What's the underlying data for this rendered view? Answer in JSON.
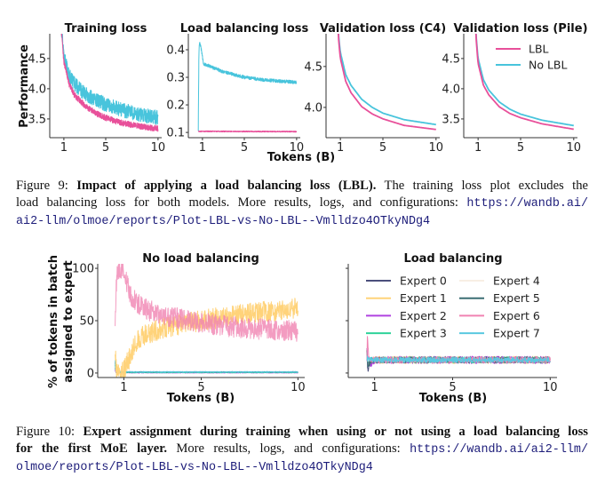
{
  "figure9": {
    "shared_xlabel": "Tokens (B)",
    "caption": {
      "label": "Figure 9: ",
      "bold": "Impact of applying a load balancing loss (LBL).",
      "text1": " The training loss plot excludes the",
      "text2": "load balancing loss for both models. More results, logs, and configurations: ",
      "url1": "https://wandb.ai/",
      "url2": "ai2-llm/olmoe/reports/Plot-LBL-vs-No-LBL--Vmlldzo4OTkyNDg4"
    },
    "legend": [
      "LBL",
      "No LBL"
    ]
  },
  "figure10": {
    "caption": {
      "label": "Figure 10: ",
      "bold1": "Expert assignment during training when using or not using a load balancing loss",
      "bold2": "for the first MoE layer.",
      "text2": " More results, logs, and configurations: ",
      "url1": "https://wandb.ai/ai2-llm/",
      "url2": "olmoe/reports/Plot-LBL-vs-No-LBL--Vmlldzo4OTkyNDg4"
    },
    "ylabel_line1": "% of tokens in batch",
    "ylabel_line2": "assigned to expert"
  },
  "colors": {
    "lbl": "#e8509a",
    "no_lbl": "#48c4dc",
    "axis": "#333333",
    "url": "#1d1d7a"
  },
  "chart_data": [
    {
      "type": "line",
      "title": "Training loss",
      "ylabel": "Performance",
      "xlabel": "",
      "xlim": [
        -0.35,
        10.35
      ],
      "ylim": [
        3.19,
        4.91
      ],
      "xticks": [
        1,
        5,
        10
      ],
      "xticklabels": [
        "1",
        "5",
        "10"
      ],
      "yticks": [
        3.5,
        4.0,
        4.5
      ],
      "yticklabels": [
        "3.5",
        "4.0",
        "4.5"
      ],
      "series": [
        {
          "name": "No LBL",
          "color": "#48c4dc",
          "x": [
            0.7,
            1,
            1.5,
            2,
            3,
            4,
            5,
            6,
            7,
            8,
            9,
            10
          ],
          "y": [
            5.1,
            4.55,
            4.22,
            4.08,
            3.92,
            3.82,
            3.74,
            3.68,
            3.63,
            3.58,
            3.55,
            3.52
          ],
          "noise": 0.12
        },
        {
          "name": "LBL",
          "color": "#e8509a",
          "x": [
            0.7,
            1,
            1.5,
            2,
            3,
            4,
            5,
            6,
            7,
            8,
            9,
            10
          ],
          "y": [
            5.1,
            4.45,
            4.08,
            3.9,
            3.72,
            3.6,
            3.52,
            3.46,
            3.42,
            3.39,
            3.36,
            3.34
          ],
          "noise": 0.05
        }
      ]
    },
    {
      "type": "line",
      "title": "Load balancing loss",
      "ylabel": "",
      "xlabel": "",
      "xlim": [
        -0.35,
        10.35
      ],
      "ylim": [
        0.081,
        0.458
      ],
      "xticks": [
        1,
        5,
        10
      ],
      "xticklabels": [
        "1",
        "5",
        "10"
      ],
      "yticks": [
        0.1,
        0.2,
        0.3,
        0.4
      ],
      "yticklabels": [
        "0.1",
        "0.2",
        "0.3",
        "0.4"
      ],
      "series": [
        {
          "name": "LBL",
          "color": "#e8509a",
          "x": [
            0.6,
            0.65,
            10
          ],
          "y": [
            0.107,
            0.104,
            0.103
          ],
          "noise": 0.002
        },
        {
          "name": "No LBL",
          "color": "#48c4dc",
          "x": [
            0.6,
            0.66,
            0.72,
            0.85,
            1.1,
            2,
            3,
            5,
            7,
            10
          ],
          "y": [
            0.11,
            0.39,
            0.43,
            0.41,
            0.35,
            0.335,
            0.32,
            0.3,
            0.29,
            0.282
          ],
          "noise": 0.006
        }
      ]
    },
    {
      "type": "line",
      "title": "Validation loss (C4)",
      "ylabel": "",
      "xlabel": "",
      "xlim": [
        -0.35,
        10.35
      ],
      "ylim": [
        3.63,
        4.9
      ],
      "xticks": [
        1,
        5,
        10
      ],
      "xticklabels": [
        "1",
        "5",
        "10"
      ],
      "yticks": [
        4.0,
        4.5
      ],
      "yticklabels": [
        "4.0",
        "4.5"
      ],
      "series": [
        {
          "name": "No LBL",
          "color": "#48c4dc",
          "x": [
            0.7,
            0.85,
            1,
            1.5,
            2,
            3,
            4,
            5,
            7,
            10
          ],
          "y": [
            5.2,
            4.85,
            4.67,
            4.4,
            4.27,
            4.1,
            4.0,
            3.93,
            3.85,
            3.79
          ],
          "noise": 0
        },
        {
          "name": "LBL",
          "color": "#e8509a",
          "x": [
            0.7,
            0.85,
            1,
            1.5,
            2,
            3,
            4,
            5,
            7,
            10
          ],
          "y": [
            5.2,
            4.8,
            4.6,
            4.32,
            4.18,
            4.01,
            3.92,
            3.86,
            3.78,
            3.73
          ],
          "noise": 0
        }
      ]
    },
    {
      "type": "line",
      "title": "Validation loss (Pile)",
      "ylabel": "",
      "xlabel": "",
      "xlim": [
        -0.35,
        10.35
      ],
      "ylim": [
        3.19,
        4.91
      ],
      "xticks": [
        1,
        5,
        10
      ],
      "xticklabels": [
        "1",
        "5",
        "10"
      ],
      "yticks": [
        3.5,
        4.0,
        4.5
      ],
      "yticklabels": [
        "3.5",
        "4.0",
        "4.5"
      ],
      "legend": "top-right",
      "series": [
        {
          "name": "No LBL",
          "color": "#48c4dc",
          "x": [
            0.7,
            0.85,
            1,
            1.5,
            2,
            3,
            4,
            5,
            7,
            10
          ],
          "y": [
            5.2,
            4.8,
            4.5,
            4.15,
            3.98,
            3.78,
            3.66,
            3.58,
            3.48,
            3.39
          ],
          "noise": 0
        },
        {
          "name": "LBL",
          "color": "#e8509a",
          "x": [
            0.7,
            0.85,
            1,
            1.5,
            2,
            3,
            4,
            5,
            7,
            10
          ],
          "y": [
            5.2,
            4.75,
            4.42,
            4.06,
            3.9,
            3.7,
            3.59,
            3.52,
            3.42,
            3.33
          ],
          "noise": 0
        }
      ]
    },
    {
      "type": "line",
      "title": "No load balancing",
      "ylabel": "% of tokens in batch assigned to expert",
      "xlabel": "Tokens (B)",
      "xlim": [
        -0.35,
        10.35
      ],
      "ylim": [
        -4.3,
        104.3
      ],
      "xticks": [
        1,
        5,
        10
      ],
      "xticklabels": [
        "1",
        "5",
        "10"
      ],
      "yticks": [
        0,
        50,
        100
      ],
      "yticklabels": [
        "0",
        "50",
        "100"
      ],
      "series": [
        {
          "name": "Expert 0",
          "color": "#4b4f7c",
          "x": [
            0.55,
            0.6,
            10
          ],
          "y": [
            5,
            0.5,
            0.5
          ],
          "noise": 0.3
        },
        {
          "name": "Expert 2",
          "color": "#b043e0",
          "x": [
            0.55,
            0.6,
            10
          ],
          "y": [
            3,
            0.3,
            0.3
          ],
          "noise": 0.3
        },
        {
          "name": "Expert 3",
          "color": "#2fd39a",
          "x": [
            0.55,
            0.6,
            10
          ],
          "y": [
            8,
            0.5,
            0.5
          ],
          "noise": 0.3
        },
        {
          "name": "Expert 5",
          "color": "#3c7f88",
          "x": [
            0.55,
            0.6,
            10
          ],
          "y": [
            10,
            1,
            1
          ],
          "noise": 0.4
        },
        {
          "name": "Expert 7",
          "color": "#5ac8e0",
          "x": [
            0.55,
            0.6,
            10
          ],
          "y": [
            12,
            1,
            1
          ],
          "noise": 0.4
        },
        {
          "name": "Expert 1",
          "color": "#ffd37a",
          "x": [
            0.55,
            0.62,
            0.9,
            1.0,
            1.3,
            1.6,
            2,
            3,
            5,
            7,
            10
          ],
          "y": [
            20,
            2,
            1,
            2,
            15,
            28,
            36,
            43,
            50,
            56,
            62
          ],
          "noise": 10
        },
        {
          "name": "Expert 6",
          "color": "#f083b2",
          "x": [
            0.55,
            0.6,
            0.65,
            0.9,
            1.05,
            1.4,
            2,
            3,
            5,
            7,
            10
          ],
          "y": [
            40,
            80,
            99,
            99,
            92,
            72,
            62,
            55,
            48,
            43,
            40
          ],
          "noise": 10
        }
      ]
    },
    {
      "type": "line",
      "title": "Load balancing",
      "ylabel": "",
      "xlabel": "Tokens (B)",
      "xlim": [
        -0.35,
        10.35
      ],
      "ylim": [
        -4.3,
        104.3
      ],
      "xticks": [
        1,
        5,
        10
      ],
      "xticklabels": [
        "1",
        "5",
        "10"
      ],
      "yticks": [
        0,
        50,
        100
      ],
      "yticklabels": [
        "",
        "",
        ""
      ],
      "legend": "top, 2 columns",
      "series": [
        {
          "name": "Expert 0",
          "color": "#4b4f7c",
          "x": [
            0.6,
            0.65,
            0.8,
            1,
            10
          ],
          "y": [
            25,
            3,
            10,
            12.5,
            12.5
          ],
          "noise": 3
        },
        {
          "name": "Expert 1",
          "color": "#ffd37a",
          "x": [
            0.6,
            0.65,
            0.8,
            1,
            10
          ],
          "y": [
            20,
            12,
            10,
            12.5,
            12.5
          ],
          "noise": 3.5
        },
        {
          "name": "Expert 2",
          "color": "#b043e0",
          "x": [
            0.6,
            0.65,
            0.8,
            1,
            10
          ],
          "y": [
            22,
            12,
            9,
            12.5,
            12.5
          ],
          "noise": 3.5
        },
        {
          "name": "Expert 3",
          "color": "#2fd39a",
          "x": [
            0.6,
            0.65,
            0.8,
            1,
            10
          ],
          "y": [
            18,
            13,
            12,
            12.5,
            12.5
          ],
          "noise": 3
        },
        {
          "name": "Expert 4",
          "color": "#f8efe4",
          "x": [
            0.6,
            0.65,
            0.8,
            1,
            10
          ],
          "y": [
            15,
            12,
            12,
            12.5,
            12.5
          ],
          "noise": 2
        },
        {
          "name": "Expert 5",
          "color": "#3c6e73",
          "x": [
            0.6,
            0.65,
            0.8,
            1,
            10
          ],
          "y": [
            20,
            8,
            11,
            12.5,
            12.5
          ],
          "noise": 3
        },
        {
          "name": "Expert 6",
          "color": "#f083b2",
          "x": [
            0.6,
            0.63,
            0.7,
            0.8,
            1,
            10
          ],
          "y": [
            10,
            35,
            14,
            13,
            12.5,
            12.5
          ],
          "noise": 3
        },
        {
          "name": "Expert 7",
          "color": "#5ac8e0",
          "x": [
            0.6,
            0.65,
            0.8,
            1,
            10
          ],
          "y": [
            15,
            13,
            13,
            12.5,
            12.5
          ],
          "noise": 2.5
        }
      ]
    }
  ]
}
